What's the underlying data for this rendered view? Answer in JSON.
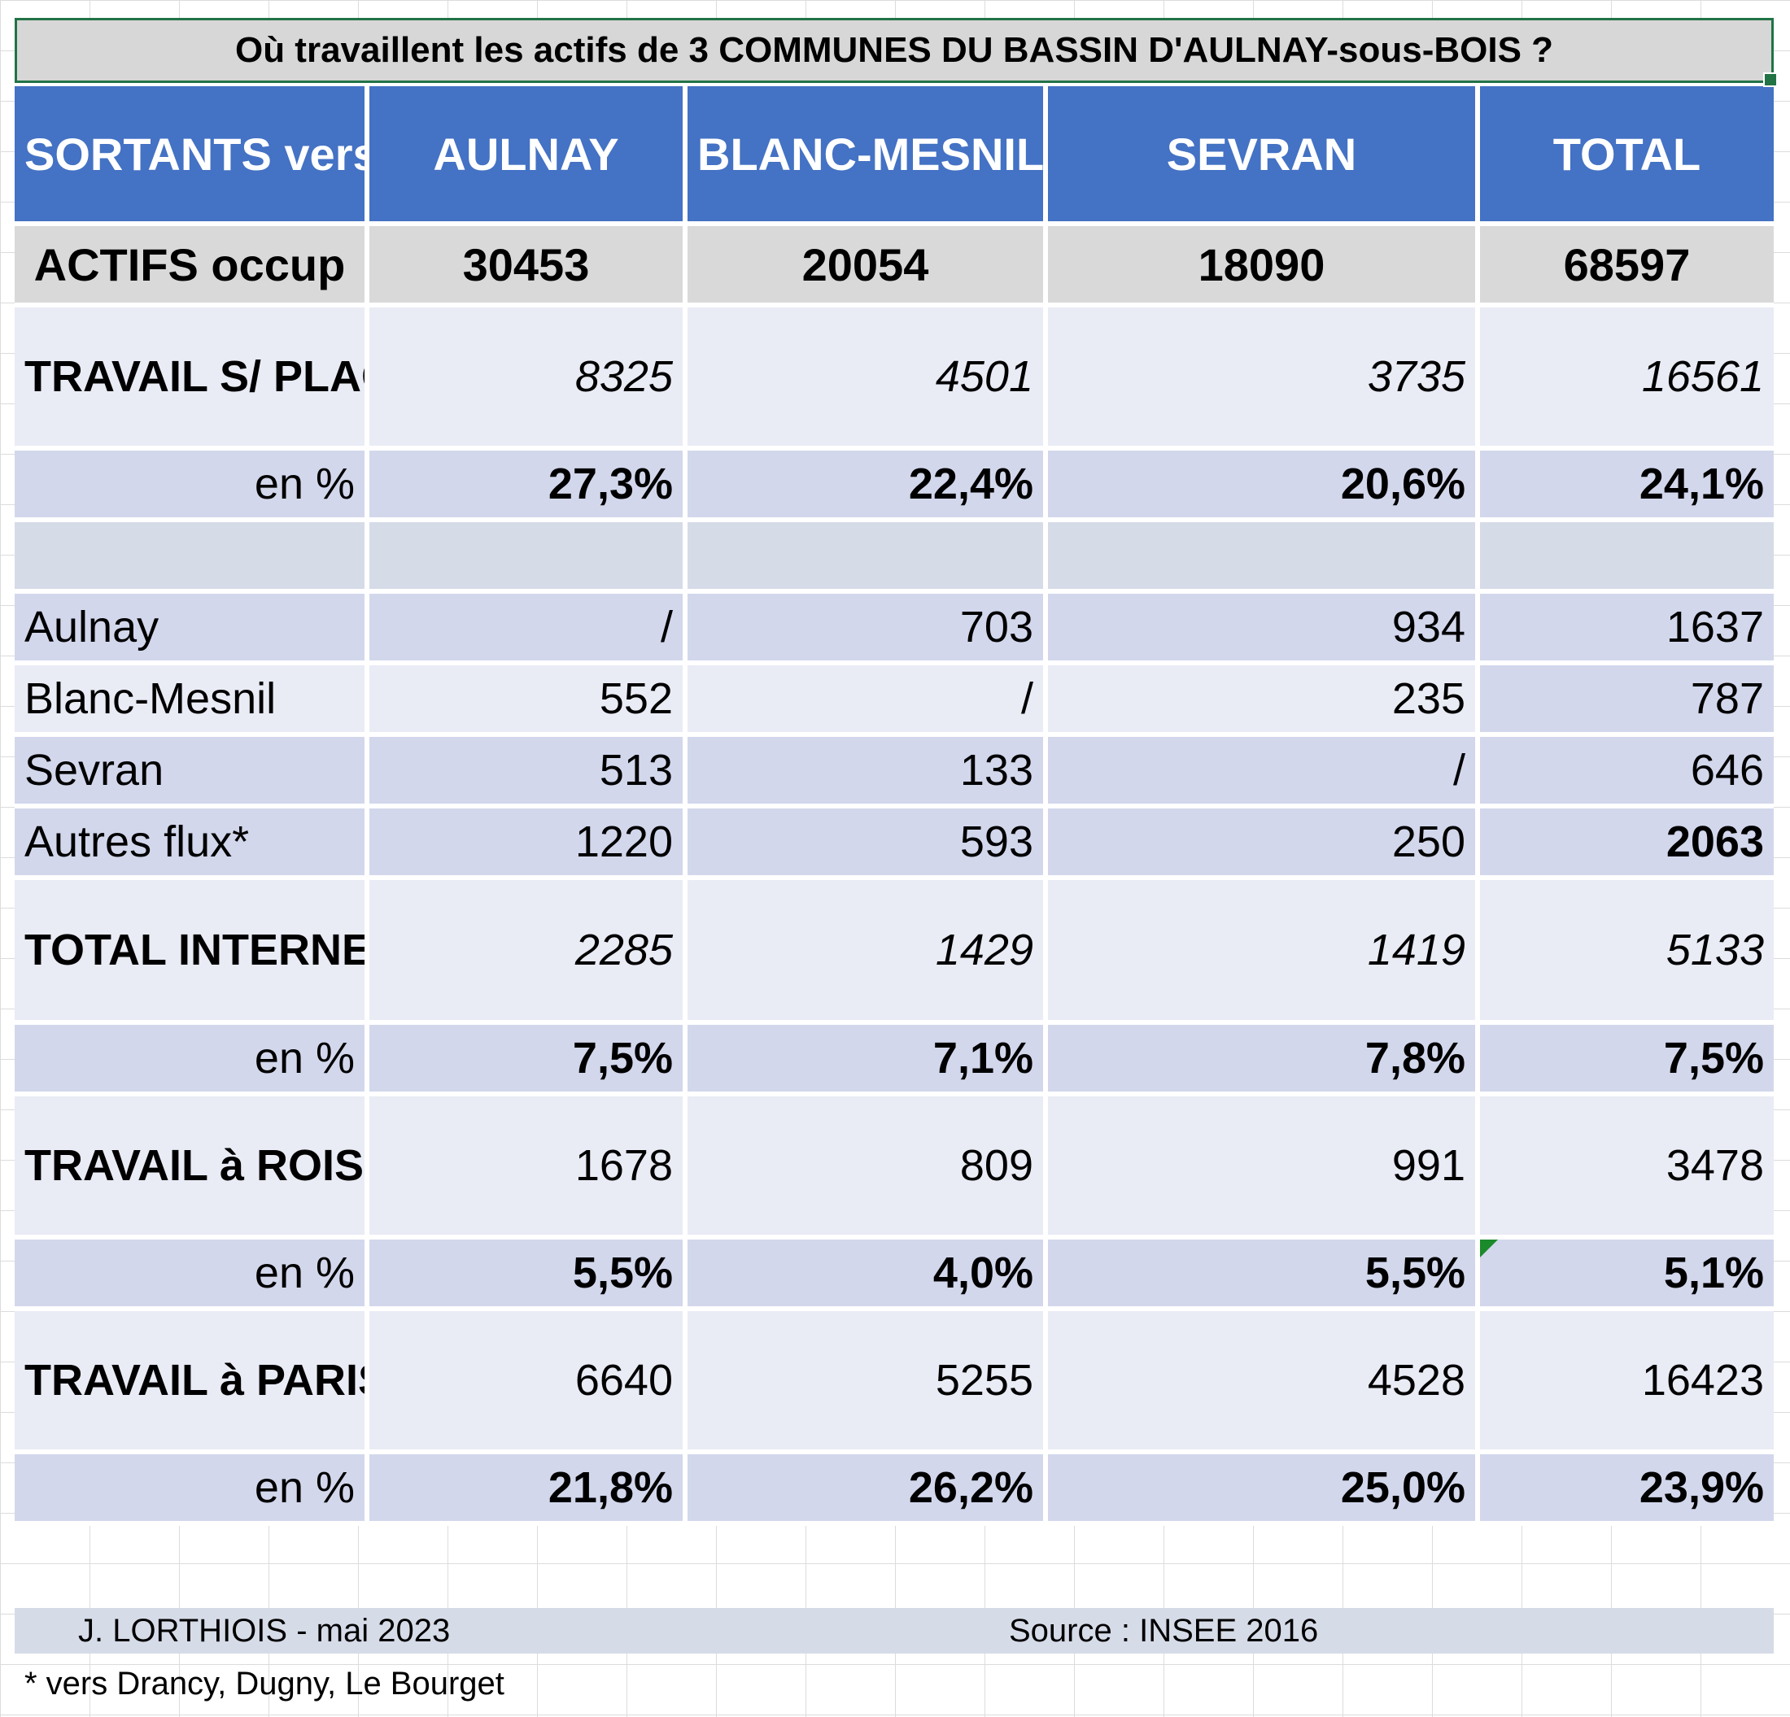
{
  "title": "Où travaillent les actifs de 3 COMMUNES DU BASSIN D'AULNAY-sous-BOIS ?",
  "header": [
    "SORTANTS vers",
    "AULNAY",
    "BLANC-MESNIL",
    "SEVRAN",
    "TOTAL"
  ],
  "actifs": {
    "label": "ACTIFS occup",
    "values": [
      "30453",
      "20054",
      "18090",
      "68597"
    ]
  },
  "travail_place": {
    "label": "TRAVAIL S/ PLACE",
    "values": [
      "8325",
      "4501",
      "3735",
      "16561"
    ]
  },
  "travail_place_pct": {
    "label": "en %",
    "values": [
      "27,3%",
      "22,4%",
      "20,6%",
      "24,1%"
    ]
  },
  "flows": [
    {
      "label": "Aulnay",
      "values": [
        "/",
        "703",
        "934",
        "1637"
      ]
    },
    {
      "label": "Blanc-Mesnil",
      "values": [
        "552",
        "/",
        "235",
        "787"
      ]
    },
    {
      "label": "Sevran",
      "values": [
        "513",
        "133",
        "/",
        "646"
      ]
    },
    {
      "label": "Autres flux*",
      "values": [
        "1220",
        "593",
        "250",
        "2063"
      ]
    }
  ],
  "total_interne": {
    "label": "TOTAL INTERNE",
    "values": [
      "2285",
      "1429",
      "1419",
      "5133"
    ]
  },
  "total_interne_pct": {
    "label": "en %",
    "values": [
      "7,5%",
      "7,1%",
      "7,8%",
      "7,5%"
    ]
  },
  "roissy": {
    "label": "TRAVAIL à ROISSY",
    "values": [
      "1678",
      "809",
      "991",
      "3478"
    ]
  },
  "roissy_pct": {
    "label": "en %",
    "values": [
      "5,5%",
      "4,0%",
      "5,5%",
      "5,1%"
    ]
  },
  "paris": {
    "label": "TRAVAIL à PARIS",
    "values": [
      "6640",
      "5255",
      "4528",
      "16423"
    ]
  },
  "paris_pct": {
    "label": "en %",
    "values": [
      "21,8%",
      "26,2%",
      "25,0%",
      "23,9%"
    ]
  },
  "footer": {
    "author": "J. LORTHIOIS - mai 2023",
    "source": "Source : INSEE 2016",
    "note": "* vers Drancy, Dugny, Le Bourget"
  },
  "colors": {
    "header_bg": "#4472c4",
    "selection_border": "#217346",
    "row_light": "#e9ebf5",
    "row_mid": "#d2d7ec",
    "row_grey": "#d9d9d9"
  }
}
